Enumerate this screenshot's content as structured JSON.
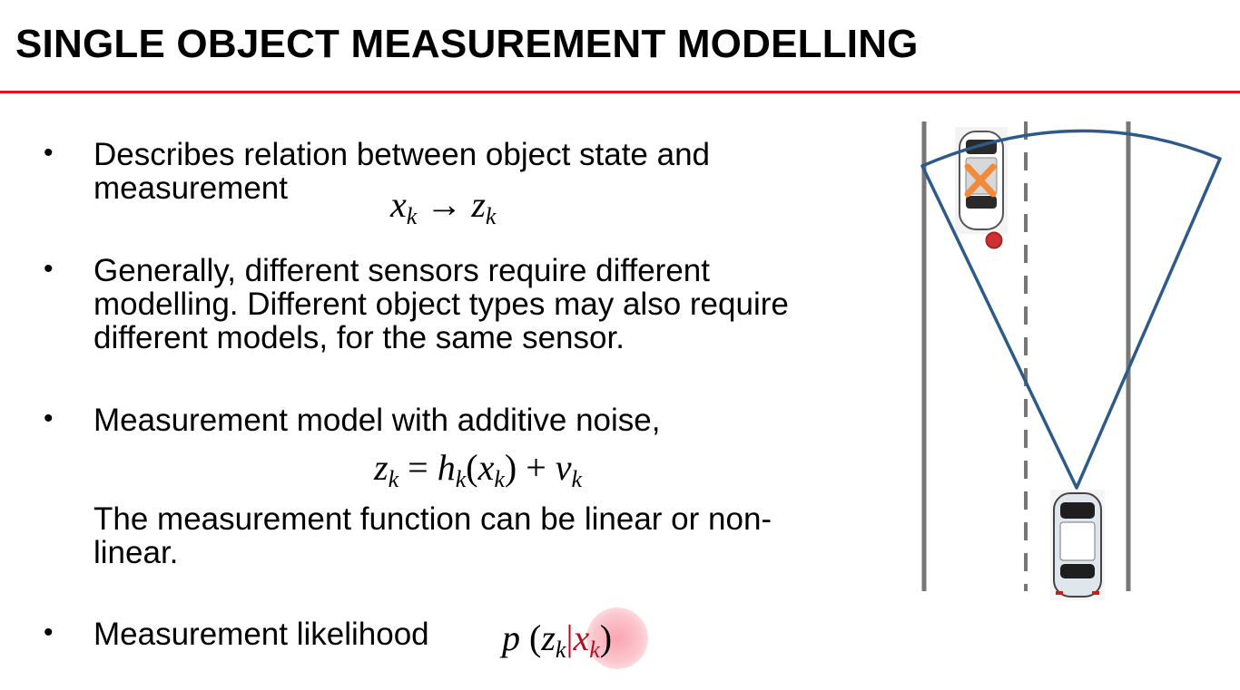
{
  "slide": {
    "title": "SINGLE OBJECT MEASUREMENT MODELLING",
    "bullet_symbol": "•",
    "bullets": [
      {
        "text": "Describes relation between object state and\nmeasurement",
        "math": {
          "lhs": "x",
          "lhs_sub": "k",
          "arrow": "→",
          "rhs": "z",
          "rhs_sub": "k"
        }
      },
      {
        "text": "Generally, different sensors require different\nmodelling. Different object types may also require\ndifferent models, for the same sensor."
      },
      {
        "text": "Measurement model with additive noise,",
        "math": {
          "z": "z",
          "z_sub": "k",
          "eq": "=",
          "h": "h",
          "h_sub": "k",
          "open": "(",
          "x": "x",
          "x_sub": "k",
          "close": ")",
          "plus": "+",
          "v": "v",
          "v_sub": "k"
        },
        "followup": "The measurement function can be linear or non-\nlinear."
      },
      {
        "text": "Measurement likelihood",
        "math": {
          "p": "p",
          "open": "(",
          "z": "z",
          "z_sub": "k",
          "bar": "|",
          "x": "x",
          "x_sub": "k",
          "close": ")"
        }
      }
    ]
  },
  "colors": {
    "accent_rule": "#e8101e",
    "sensor_fov": "#2e5a88",
    "lane_line": "#777777",
    "detection_marker": "#d03030",
    "cross_marker": "#f08a3c",
    "likelihood_highlight": "#f8a0ae"
  },
  "figure": {
    "icons": [
      "road-lanes",
      "sensor-field-of-view",
      "target-car-icon",
      "ego-car-icon",
      "measurement-point",
      "true-position-cross"
    ]
  }
}
